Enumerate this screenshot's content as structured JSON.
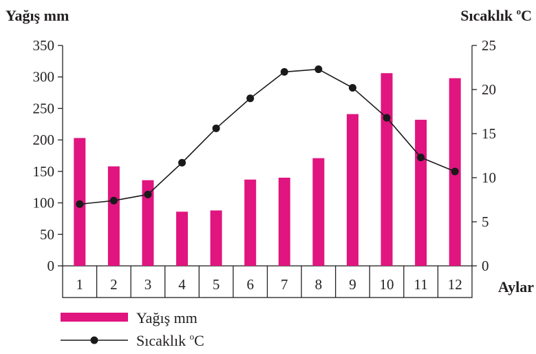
{
  "chart_data": {
    "type": "bar",
    "categories": [
      "1",
      "2",
      "3",
      "4",
      "5",
      "6",
      "7",
      "8",
      "9",
      "10",
      "11",
      "12"
    ],
    "y_left_label": "Yağış mm",
    "y_right_label_base": "Sıcaklık",
    "y_right_label_unit_sup": "o",
    "y_right_label_unit": "C",
    "x_label": "Aylar",
    "y_left_lim": [
      0,
      350
    ],
    "y_left_ticks": [
      0,
      50,
      100,
      150,
      200,
      250,
      300,
      350
    ],
    "y_right_lim": [
      0,
      25
    ],
    "y_right_ticks": [
      0,
      5,
      10,
      15,
      20,
      25
    ],
    "grid": false,
    "legend_position": "bottom-left",
    "series": [
      {
        "name": "Yağış mm",
        "type": "bar",
        "axis": "left",
        "color": "#e0157f",
        "values": [
          203,
          158,
          136,
          86,
          88,
          137,
          140,
          171,
          241,
          306,
          232,
          298
        ]
      },
      {
        "name_base": "Sıcaklık",
        "name_sup": "o",
        "name_unit": "C",
        "type": "line",
        "axis": "right",
        "color": "#1a1a1a",
        "values": [
          7.0,
          7.4,
          8.1,
          11.7,
          15.6,
          19.0,
          22.0,
          22.3,
          20.2,
          16.8,
          12.3,
          10.7
        ]
      }
    ]
  }
}
